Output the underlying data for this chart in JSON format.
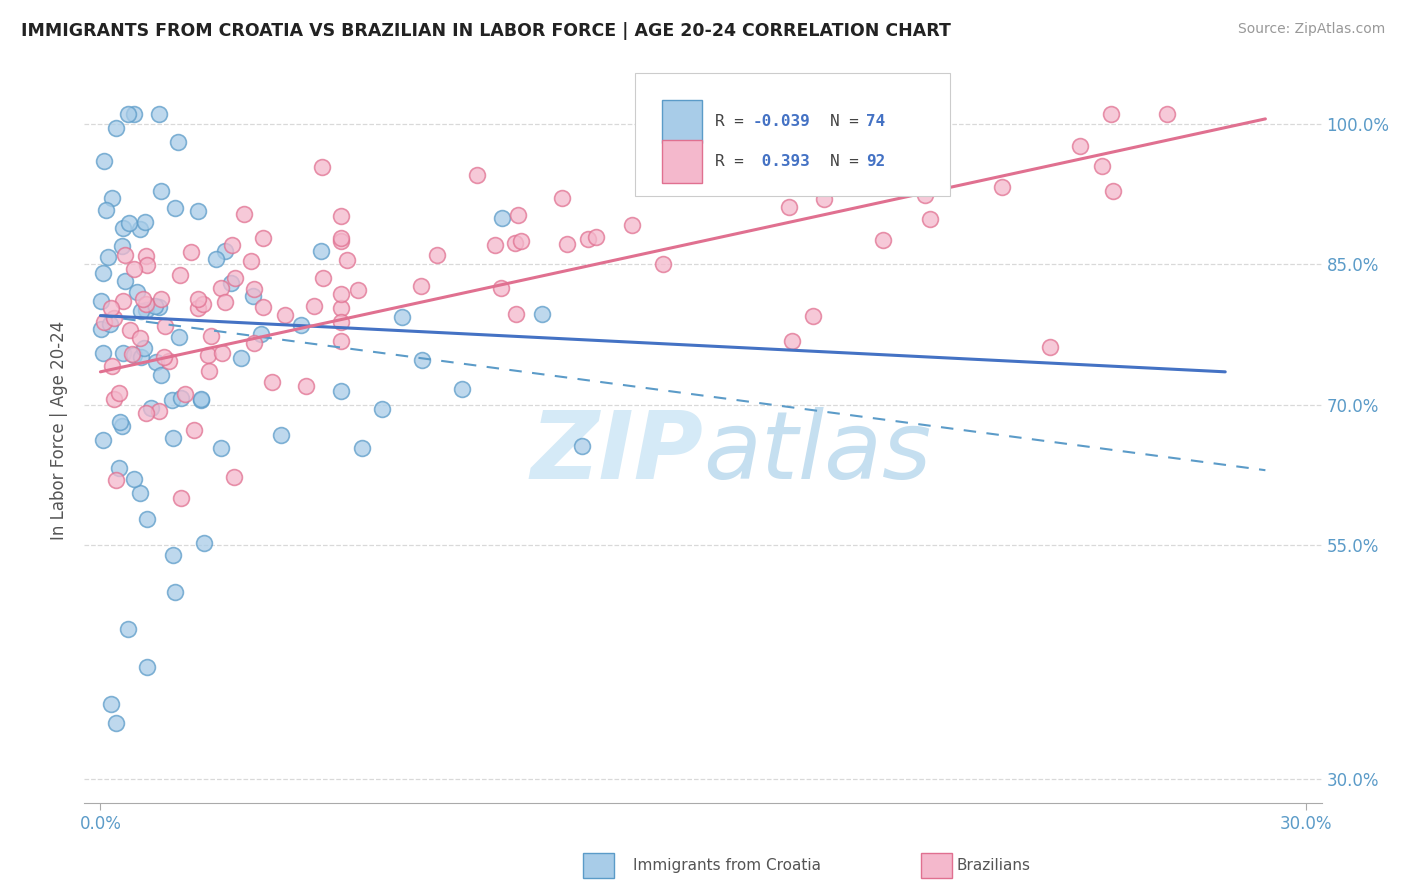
{
  "title": "IMMIGRANTS FROM CROATIA VS BRAZILIAN IN LABOR FORCE | AGE 20-24 CORRELATION CHART",
  "source": "Source: ZipAtlas.com",
  "ylabel": "In Labor Force | Age 20-24",
  "xlim": [
    -0.004,
    0.304
  ],
  "ylim": [
    0.275,
    1.07
  ],
  "xticks": [
    0.0,
    0.3
  ],
  "xtick_labels": [
    "0.0%",
    "30.0%"
  ],
  "ytick_labels": [
    "30.0%",
    "55.0%",
    "70.0%",
    "85.0%",
    "100.0%"
  ],
  "ytick_positions": [
    0.3,
    0.55,
    0.7,
    0.85,
    1.0
  ],
  "legend_r_croatia": "-0.039",
  "legend_n_croatia": "74",
  "legend_r_brazil": "0.393",
  "legend_n_brazil": "92",
  "color_croatia_fill": "#a8cce8",
  "color_croatia_edge": "#5b9bc8",
  "color_croatia_line": "#4472c4",
  "color_brazil_fill": "#f4b8cc",
  "color_brazil_edge": "#e07090",
  "color_brazil_line": "#e07090",
  "watermark_color": "#d5eaf7",
  "grid_color": "#d9d9d9"
}
